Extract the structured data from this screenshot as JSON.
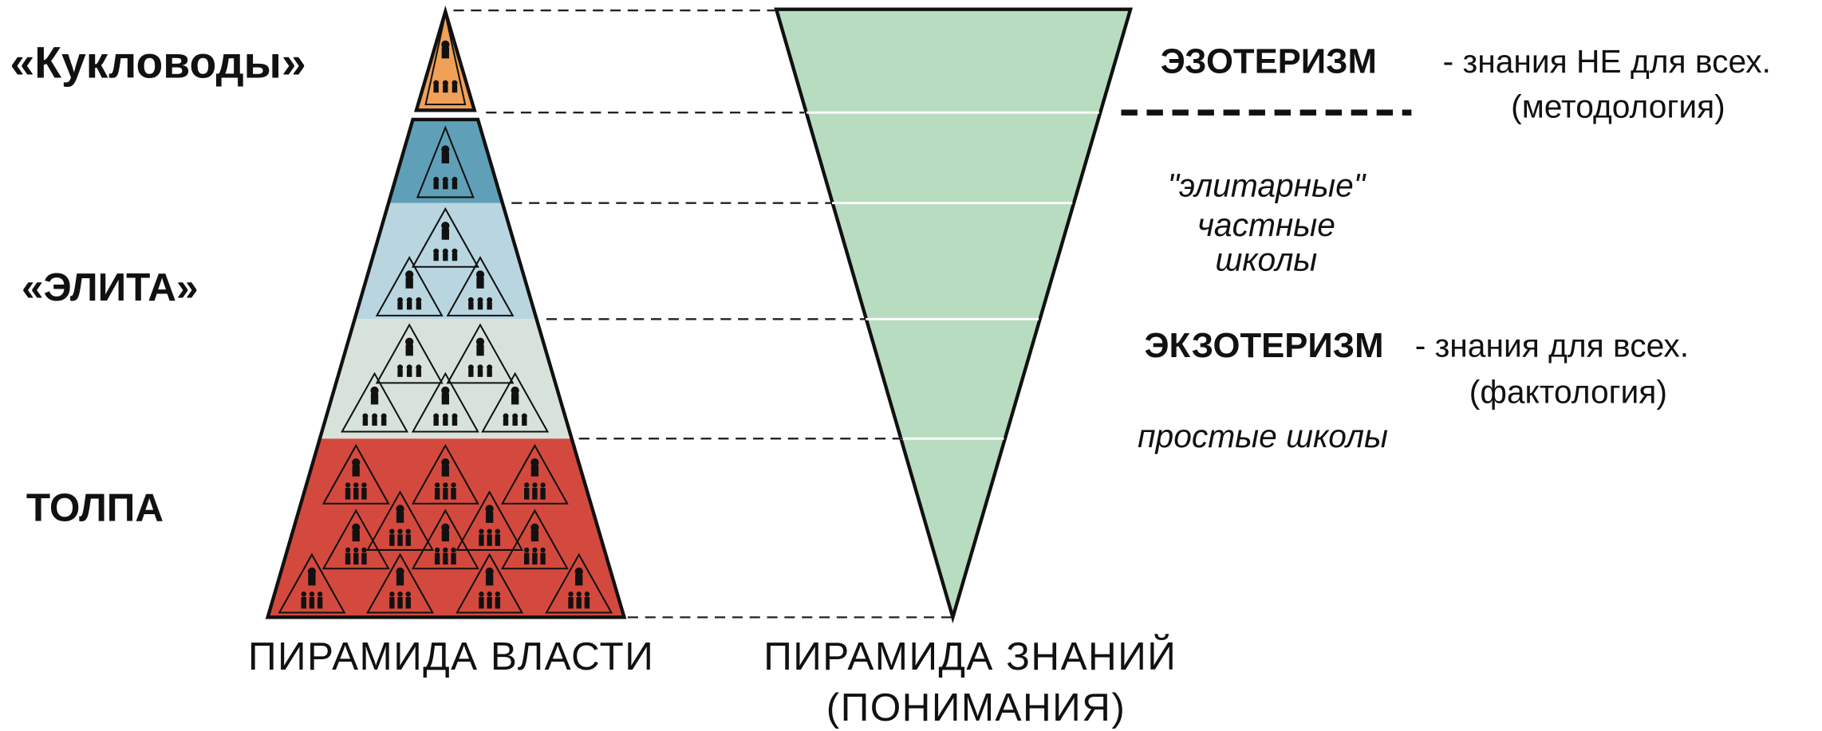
{
  "left_labels": [
    "«Кукловоды»",
    "«ЭЛИТА»",
    "ТОЛПА"
  ],
  "power_pyramid": {
    "caption": "ПИРАМИДА ВЛАСТИ"
  },
  "knowledge_pyramid": {
    "caption": [
      "ПИРАМИДА ЗНАНИЙ",
      "(ПОНИМАНИЯ)"
    ]
  },
  "esoteric": {
    "term": "ЭЗОТЕРИЗМ",
    "description": [
      "- знания НЕ для всех.",
      "(методология)"
    ]
  },
  "elite_schools": [
    "\"элитарные\"",
    "частные",
    "школы"
  ],
  "exoteric": {
    "term": "ЭКЗОТЕРИЗМ",
    "description": [
      "- знания для всех.",
      "(фактология)"
    ]
  },
  "simple_schools": "простые школы"
}
